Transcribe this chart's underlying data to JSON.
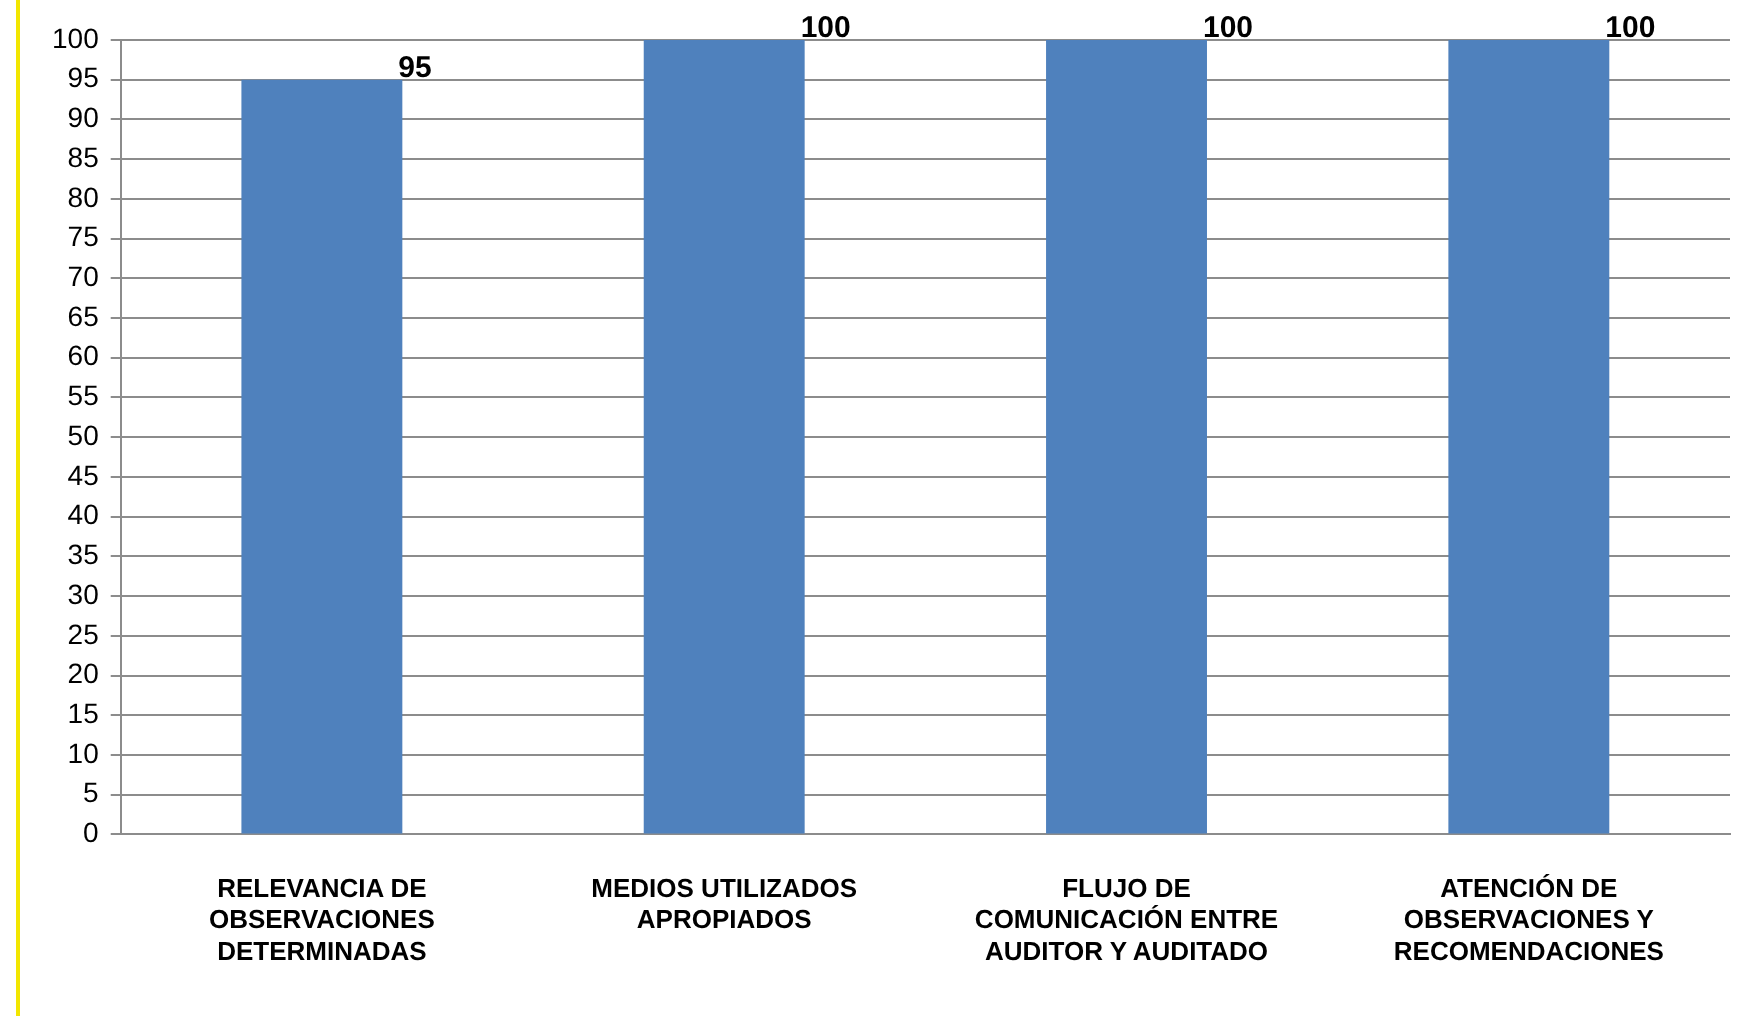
{
  "chart_data": {
    "type": "bar",
    "categories": [
      "RELEVANCIA DE OBSERVACIONES DETERMINADAS",
      "MEDIOS UTILIZADOS APROPIADOS",
      "FLUJO DE COMUNICACIÓN ENTRE AUDITOR Y AUDITADO",
      "ATENCIÓN DE OBSERVACIONES Y RECOMENDACIONES"
    ],
    "values": [
      95,
      100,
      100,
      100
    ],
    "color": "#4f81bd",
    "ylim": [
      0,
      100
    ],
    "yticks": [
      0,
      5,
      10,
      15,
      20,
      25,
      30,
      35,
      40,
      45,
      50,
      55,
      60,
      65,
      70,
      75,
      80,
      85,
      90,
      95,
      100
    ],
    "grid": "y",
    "data_labels": true,
    "legend": false
  }
}
